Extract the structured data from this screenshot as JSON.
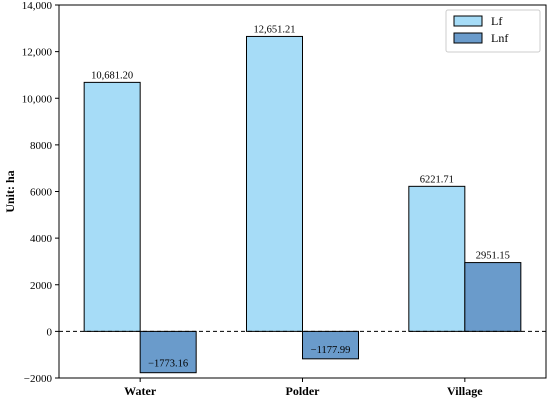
{
  "chart_data": {
    "type": "bar",
    "ylabel": "Unit: ha",
    "ylim": [
      -2000,
      14000
    ],
    "yticks": [
      -2000,
      0,
      2000,
      4000,
      6000,
      8000,
      10000,
      12000,
      14000
    ],
    "ytick_labels": [
      "−2000",
      "0",
      "2000",
      "4000",
      "6000",
      "8000",
      "10,000",
      "12,000",
      "14,000"
    ],
    "categories": [
      "Water",
      "Polder",
      "Village"
    ],
    "series": [
      {
        "name": "Lf",
        "color": "#a6dcf7",
        "values": [
          10681.2,
          12651.21,
          6221.71
        ],
        "labels": [
          "10,681.20",
          "12,651.21",
          "6221.71"
        ]
      },
      {
        "name": "Lnf",
        "color": "#6a9bcb",
        "values": [
          -1773.16,
          -1177.99,
          2951.15
        ],
        "labels": [
          "−1773.16",
          "−1177.99",
          "2951.15"
        ]
      }
    ],
    "zero_line": "dashed",
    "grid": false,
    "legend_position": "top-right"
  }
}
